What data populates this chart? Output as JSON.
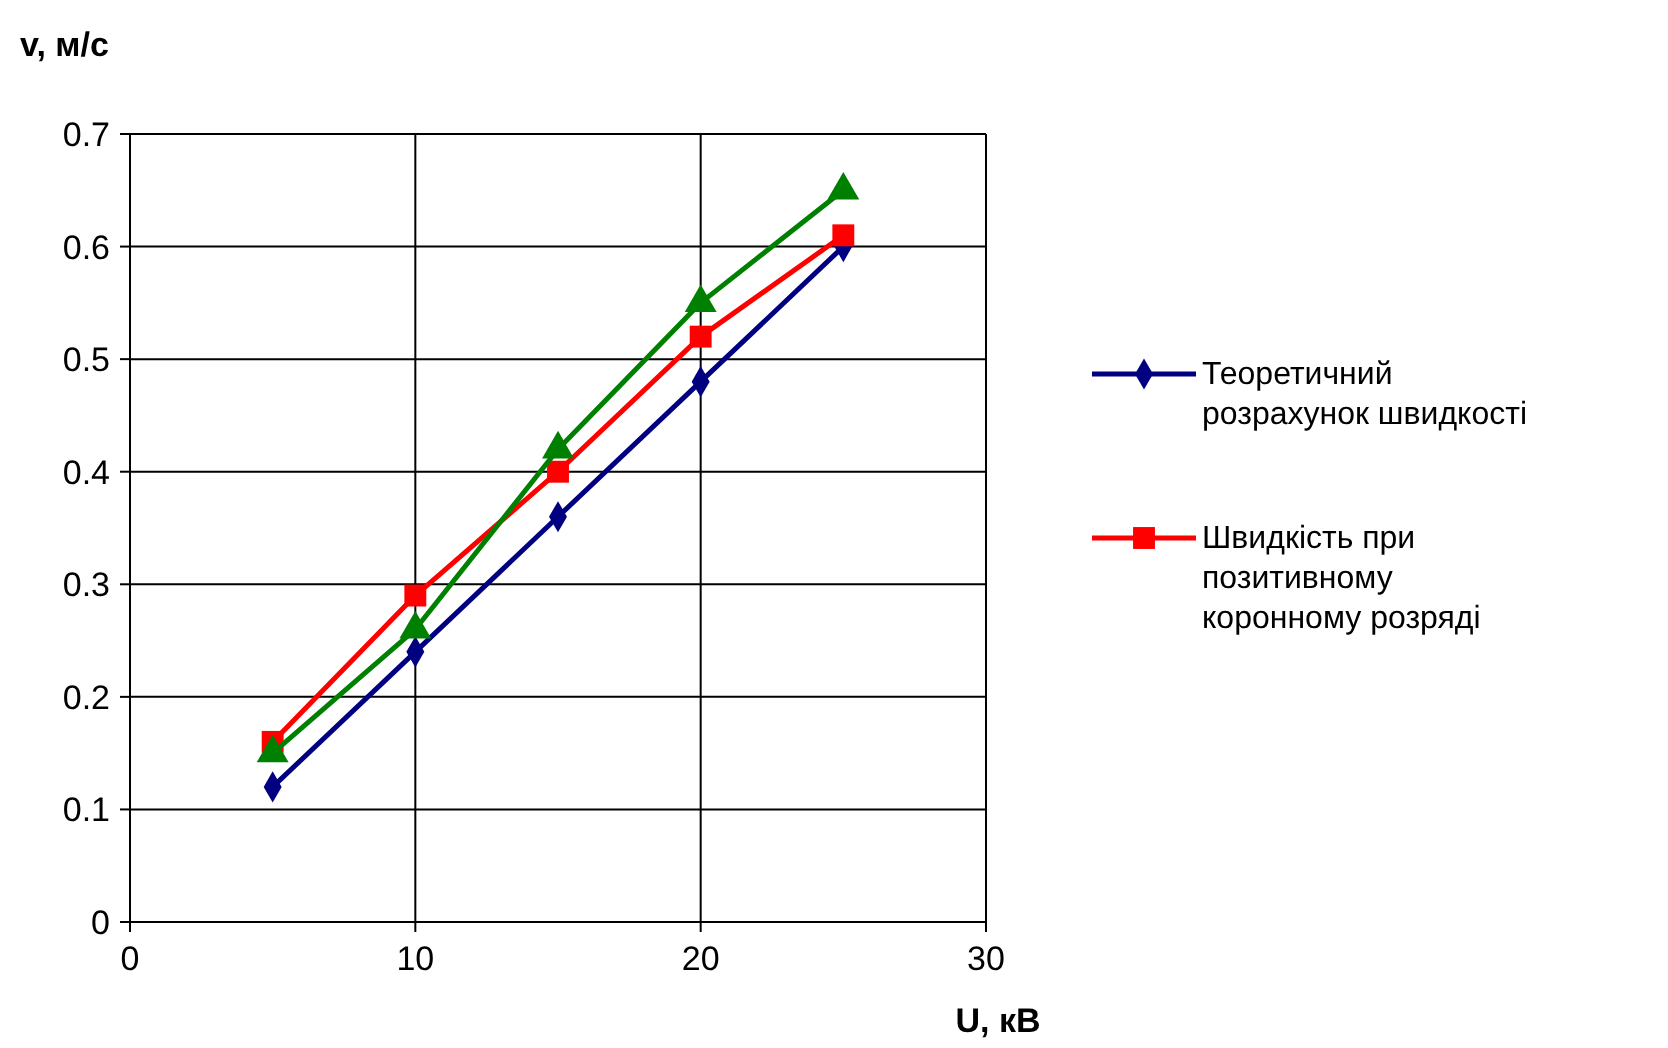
{
  "chart_data": {
    "type": "line",
    "xlabel": "U, кВ",
    "ylabel": "v, м/с",
    "x": [
      5,
      10,
      15,
      20,
      25
    ],
    "series": [
      {
        "name": "Теоретичний розрахунок швидкості",
        "color": "#000080",
        "marker": "diamond",
        "values": [
          0.12,
          0.24,
          0.36,
          0.48,
          0.6
        ]
      },
      {
        "name": "Швидкість при позитивному коронному розряді",
        "color": "#ff0000",
        "marker": "square",
        "values": [
          0.16,
          0.29,
          0.4,
          0.52,
          0.61
        ]
      },
      {
        "color": "#008000",
        "marker": "triangle",
        "values": [
          0.15,
          0.26,
          0.42,
          0.55,
          0.65
        ]
      }
    ],
    "xlim": [
      0,
      30
    ],
    "xticks": [
      0,
      10,
      20,
      30
    ],
    "ylim": [
      0,
      0.7
    ],
    "yticks": [
      0,
      0.1,
      0.2,
      0.3,
      0.4,
      0.5,
      0.6,
      0.7
    ],
    "grid": true,
    "legend": "right"
  }
}
